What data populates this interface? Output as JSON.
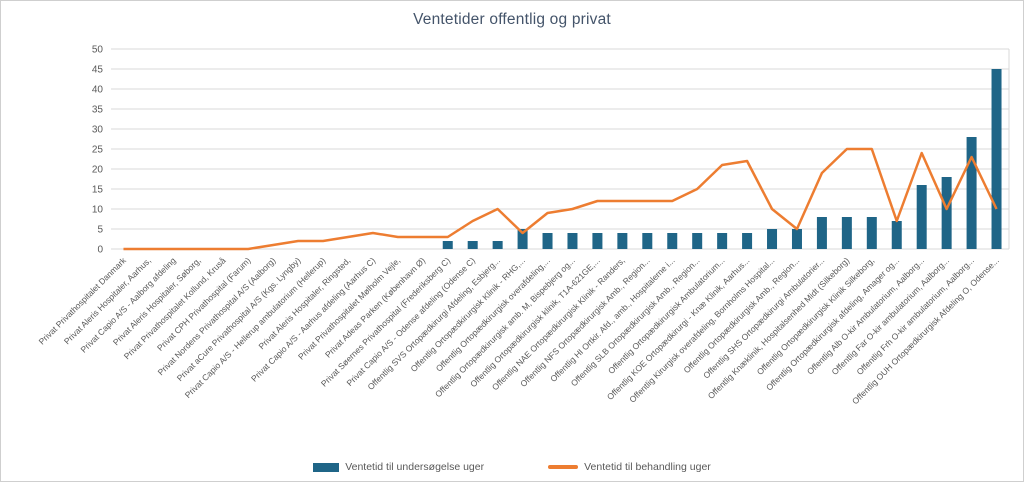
{
  "title": "Ventetider offentlig og privat",
  "legend": {
    "bar_label": "Ventetid til undersøgelse uger",
    "line_label": "Ventetid til behandling uger"
  },
  "colors": {
    "bar": "#1F6587",
    "line": "#ED7D31",
    "grid": "#D9D9D9",
    "axis_text": "#595959",
    "title_text": "#44546A"
  },
  "chart_data": {
    "type": "bar",
    "subtype": "bar+line combo",
    "title": "Ventetider offentlig og privat",
    "xlabel": "",
    "ylabel": "",
    "ylim": [
      0,
      50
    ],
    "ytick_step": 5,
    "grid": true,
    "legend_position": "bottom",
    "categories": [
      "Privat Privathospitalet Danmark",
      "Privat Aleris Hospitaler, Aarhus,",
      "Privat Capio A/S - Aalborg afdeling",
      "Privat Aleris Hospitaler, Søborg,",
      "Privat Privathospitalet Kollund, Kruså",
      "Privat CPH Privathospital (Farum)",
      "Privat Nordens Privathospital A/S (Aalborg)",
      "Privat aCure Privathospital A/S (Kgs. Lyngby)",
      "Privat Capio A/S - Hellerup ambulatorium (Hellerup)",
      "Privat Aleris Hospitaler, Ringsted,",
      "Privat Capio A/S - Aarhus afdeling (Aarhus C)",
      "Privat Privathospitalet Mølholm Vejle,",
      "Privat Adeas Parken (København Ø)",
      "Privat Søernes Privathospital (Frederiksberg C)",
      "Privat Capio A/S - Odense afdeling (Odense C)",
      "Offentlig SVS Ortopædkirurgi Afdeling, Esbjerg...",
      "Offentlig Ortopædkirurgisk Klinik - RHG,...",
      "Offentlig Ortopædkirurgisk overafdeling,...",
      "Offentlig Ortopædkirurgisk amb. M, Bispebjerg og...",
      "Offentlig Ortopædkirurgisk klinik, T1A-621GE,...",
      "Offentlig NAE Ortopædkirurgisk Klinik - Randers,",
      "Offentlig NFS Ortopædkirurgisk Amb., Region...",
      "Offentlig HI Ortkir. Afd., amb., Hospitalerne i...",
      "Offentlig SLB Ortopædkirurgisk Amb., Region...",
      "Offentlig Ortopædkirurgisk Ambulatorium...",
      "Offentlig KOE Ortopædkirurgi - Knæ Klinik, Aarhus...",
      "Offentlig Kirurgisk overafdeling, Bornholms Hospital...",
      "Offentlig Ortopædkirurgisk Amb., Region...",
      "Offentlig SHS Ortopædkirurgi Ambulatorier...",
      "Offentlig Knæklinik, Hospitalsenhed Midt (Silkeborg)",
      "Offentlig Ortopædkirurgisk Klinik Silkeborg,",
      "Offentlig Ortopædkirurgisk afdeling, Amager og...",
      "Offentlig Alb O-kir Ambulatorium, Aalborg...",
      "Offentlig Far O-kir ambulatorium, Aalborg...",
      "Offentlig Frh O-kir ambulatorium, Aalborg...",
      "Offentlig OUH Ortopædkirurgisk Afdeling O, Odense..."
    ],
    "series": [
      {
        "name": "Ventetid til undersøgelse uger",
        "type": "bar",
        "values": [
          0,
          0,
          0,
          0,
          0,
          0,
          0,
          0,
          0,
          0,
          0,
          0,
          0,
          2,
          2,
          2,
          5,
          4,
          4,
          4,
          4,
          4,
          4,
          4,
          4,
          4,
          5,
          5,
          8,
          8,
          8,
          7,
          16,
          18,
          28,
          45
        ]
      },
      {
        "name": "Ventetid til behandling uger",
        "type": "line",
        "values": [
          0,
          0,
          0,
          0,
          0,
          0,
          1,
          2,
          2,
          3,
          4,
          3,
          3,
          3,
          7,
          10,
          4,
          9,
          10,
          12,
          12,
          12,
          12,
          15,
          21,
          22,
          10,
          5,
          19,
          25,
          25,
          7,
          24,
          10,
          23,
          10
        ]
      }
    ]
  }
}
